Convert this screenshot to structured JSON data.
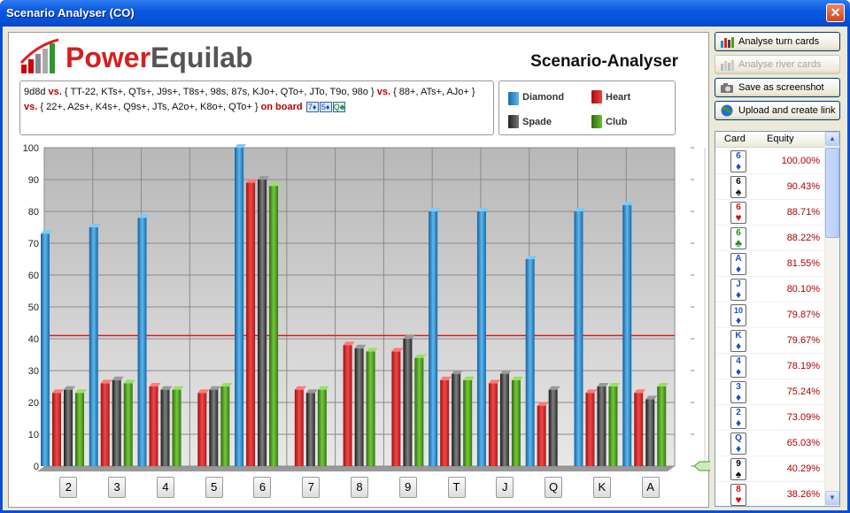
{
  "window": {
    "title": "Scenario Analyser (CO)"
  },
  "logo": {
    "part1": "Power",
    "part2": "Equilab"
  },
  "header": {
    "title": "Scenario-Analyser"
  },
  "ranges": {
    "hero": "9d8d",
    "vs_label": "vs.",
    "range1": "{ TT-22, KTs+, QTs+, J9s+, T8s+, 98s, 87s, KJo+, QTo+, JTo, T9o, 98o }",
    "range2": "{ 88+, ATs+, AJo+ }",
    "range3": "{ 22+, A2s+, K4s+, Q9s+, JTs, A2o+, K8o+, QTo+ }",
    "on_board_label": "on board",
    "board": [
      {
        "rank": "7",
        "suit": "♦"
      },
      {
        "rank": "5",
        "suit": "♦"
      },
      {
        "rank": "Q",
        "suit": "♣"
      }
    ]
  },
  "legend": [
    {
      "name": "Diamond",
      "color": "#2a8ad0"
    },
    {
      "name": "Heart",
      "color": "#e02424"
    },
    {
      "name": "Spade",
      "color": "#444444"
    },
    {
      "name": "Club",
      "color": "#4d9a1e"
    }
  ],
  "buttons": {
    "analyse_turn": "Analyse turn cards",
    "analyse_river": "Analyse river cards",
    "screenshot": "Save as screenshot",
    "upload": "Upload and create link"
  },
  "table": {
    "headers": [
      "Card",
      "Equity"
    ],
    "rows": [
      {
        "rank": "6",
        "suit": "♦",
        "color": "#1a4fc0",
        "equity": "100.00%"
      },
      {
        "rank": "6",
        "suit": "♠",
        "color": "#000000",
        "equity": "90.43%"
      },
      {
        "rank": "6",
        "suit": "♥",
        "color": "#d01010",
        "equity": "88.71%"
      },
      {
        "rank": "6",
        "suit": "♣",
        "color": "#1a8a1a",
        "equity": "88.22%"
      },
      {
        "rank": "A",
        "suit": "♦",
        "color": "#1a4fc0",
        "equity": "81.55%"
      },
      {
        "rank": "J",
        "suit": "♦",
        "color": "#1a4fc0",
        "equity": "80.10%"
      },
      {
        "rank": "10",
        "suit": "♦",
        "color": "#1a4fc0",
        "equity": "79.87%"
      },
      {
        "rank": "K",
        "suit": "♦",
        "color": "#1a4fc0",
        "equity": "79.67%"
      },
      {
        "rank": "4",
        "suit": "♦",
        "color": "#1a4fc0",
        "equity": "78.19%"
      },
      {
        "rank": "3",
        "suit": "♦",
        "color": "#1a4fc0",
        "equity": "75.24%"
      },
      {
        "rank": "2",
        "suit": "♦",
        "color": "#1a4fc0",
        "equity": "73.09%"
      },
      {
        "rank": "Q",
        "suit": "♦",
        "color": "#1a4fc0",
        "equity": "65.03%"
      },
      {
        "rank": "9",
        "suit": "♠",
        "color": "#000000",
        "equity": "40.29%"
      },
      {
        "rank": "8",
        "suit": "♥",
        "color": "#d01010",
        "equity": "38.26%"
      }
    ]
  },
  "chart_data": {
    "type": "bar",
    "categories": [
      "2",
      "3",
      "4",
      "5",
      "6",
      "7",
      "8",
      "9",
      "T",
      "J",
      "Q",
      "K",
      "A"
    ],
    "series": [
      {
        "name": "Diamond",
        "values": [
          73,
          75,
          78,
          null,
          100,
          null,
          null,
          null,
          80,
          80,
          65,
          80,
          82
        ]
      },
      {
        "name": "Heart",
        "values": [
          23,
          26,
          25,
          23,
          89,
          24,
          38,
          36,
          27,
          26,
          19,
          23,
          23
        ]
      },
      {
        "name": "Spade",
        "values": [
          24,
          27,
          24,
          24,
          90,
          23,
          37,
          40,
          29,
          29,
          24,
          25,
          21
        ]
      },
      {
        "name": "Club",
        "values": [
          23,
          26,
          24,
          25,
          88,
          24,
          36,
          34,
          27,
          27,
          null,
          25,
          25
        ]
      }
    ],
    "yticks": [
      0,
      10,
      20,
      30,
      40,
      50,
      60,
      70,
      80,
      90,
      100
    ],
    "ylim": [
      0,
      100
    ],
    "reference_line": 41,
    "grid": true
  }
}
